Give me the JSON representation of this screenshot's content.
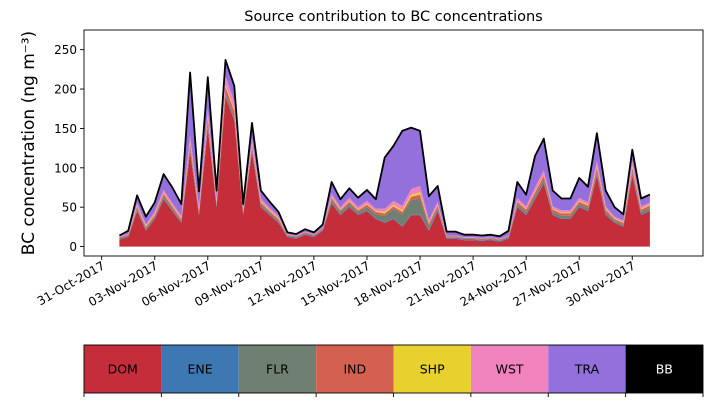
{
  "chart_data": {
    "type": "area",
    "title": "Source contribution to BC concentrations",
    "ylabel": "BC concentration (ng m⁻³)",
    "xlabel": "",
    "stacked": true,
    "ylim": [
      -12,
      275
    ],
    "xlim": [
      "2017-10-30",
      "2017-12-04"
    ],
    "yticks": [
      0,
      50,
      100,
      150,
      200,
      250
    ],
    "xticks": [
      "31-Oct-2017",
      "03-Nov-2017",
      "06-Nov-2017",
      "09-Nov-2017",
      "12-Nov-2017",
      "15-Nov-2017",
      "18-Nov-2017",
      "21-Nov-2017",
      "24-Nov-2017",
      "27-Nov-2017",
      "30-Nov-2017"
    ],
    "grid": false,
    "total_line_color": "#000000",
    "x": [
      "2017-11-01",
      "2017-11-01 12:00",
      "2017-11-02",
      "2017-11-02 12:00",
      "2017-11-03",
      "2017-11-03 12:00",
      "2017-11-04",
      "2017-11-04 12:00",
      "2017-11-05",
      "2017-11-05 12:00",
      "2017-11-06",
      "2017-11-06 12:00",
      "2017-11-07",
      "2017-11-07 12:00",
      "2017-11-08",
      "2017-11-08 12:00",
      "2017-11-09",
      "2017-11-09 12:00",
      "2017-11-10",
      "2017-11-10 12:00",
      "2017-11-11",
      "2017-11-11 12:00",
      "2017-11-12",
      "2017-11-12 12:00",
      "2017-11-13",
      "2017-11-13 12:00",
      "2017-11-14",
      "2017-11-14 12:00",
      "2017-11-15",
      "2017-11-15 12:00",
      "2017-11-16",
      "2017-11-16 12:00",
      "2017-11-17",
      "2017-11-17 12:00",
      "2017-11-18",
      "2017-11-18 12:00",
      "2017-11-19",
      "2017-11-19 12:00",
      "2017-11-20",
      "2017-11-20 12:00",
      "2017-11-21",
      "2017-11-21 12:00",
      "2017-11-22",
      "2017-11-22 12:00",
      "2017-11-23",
      "2017-11-23 12:00",
      "2017-11-24",
      "2017-11-24 12:00",
      "2017-11-25",
      "2017-11-25 12:00",
      "2017-11-26",
      "2017-11-26 12:00",
      "2017-11-27",
      "2017-11-27 12:00",
      "2017-11-28",
      "2017-11-28 12:00",
      "2017-11-29",
      "2017-11-29 12:00",
      "2017-11-30",
      "2017-11-30 12:00",
      "2017-12-01"
    ],
    "series": [
      {
        "name": "DOM",
        "color": "#c62d3a",
        "values": [
          9,
          12,
          45,
          20,
          35,
          60,
          45,
          30,
          120,
          40,
          150,
          50,
          190,
          160,
          40,
          120,
          50,
          40,
          30,
          12,
          10,
          15,
          12,
          20,
          55,
          40,
          50,
          40,
          45,
          35,
          30,
          35,
          25,
          40,
          40,
          20,
          45,
          10,
          10,
          8,
          8,
          7,
          8,
          6,
          10,
          50,
          40,
          60,
          80,
          40,
          35,
          35,
          50,
          45,
          90,
          40,
          30,
          25,
          90,
          40,
          45
        ]
      },
      {
        "name": "ENE",
        "color": "#3e78b2",
        "values": [
          1,
          1,
          1,
          1,
          1,
          1,
          1,
          1,
          1,
          1,
          1,
          1,
          1,
          1,
          1,
          1,
          1,
          1,
          1,
          1,
          1,
          1,
          1,
          1,
          1,
          1,
          1,
          1,
          1,
          1,
          1,
          1,
          1,
          1,
          1,
          1,
          1,
          1,
          1,
          1,
          1,
          1,
          1,
          1,
          1,
          1,
          1,
          1,
          1,
          1,
          1,
          1,
          1,
          1,
          1,
          1,
          1,
          1,
          1,
          1,
          1
        ]
      },
      {
        "name": "FLR",
        "color": "#6f7f72",
        "values": [
          1,
          1,
          2,
          2,
          2,
          3,
          2,
          2,
          4,
          2,
          4,
          2,
          4,
          4,
          2,
          3,
          2,
          2,
          2,
          1,
          1,
          1,
          1,
          1,
          3,
          3,
          3,
          3,
          4,
          5,
          8,
          12,
          15,
          18,
          20,
          5,
          3,
          1,
          1,
          1,
          1,
          1,
          1,
          1,
          1,
          3,
          3,
          4,
          4,
          3,
          3,
          3,
          3,
          3,
          4,
          3,
          2,
          2,
          4,
          3,
          3
        ]
      },
      {
        "name": "IND",
        "color": "#d4614f",
        "values": [
          1,
          1,
          3,
          2,
          2,
          3,
          3,
          2,
          6,
          3,
          8,
          3,
          8,
          7,
          2,
          5,
          3,
          2,
          2,
          1,
          1,
          1,
          1,
          1,
          3,
          2,
          3,
          2,
          3,
          3,
          3,
          3,
          3,
          4,
          5,
          3,
          3,
          1,
          1,
          1,
          1,
          1,
          1,
          1,
          1,
          3,
          3,
          4,
          5,
          3,
          3,
          3,
          3,
          3,
          5,
          3,
          2,
          2,
          5,
          3,
          3
        ]
      },
      {
        "name": "SHP",
        "color": "#e8d12e",
        "values": [
          0,
          0,
          1,
          1,
          1,
          1,
          1,
          1,
          2,
          1,
          2,
          1,
          2,
          2,
          1,
          1,
          1,
          1,
          1,
          0,
          0,
          0,
          0,
          0,
          1,
          1,
          1,
          1,
          1,
          1,
          2,
          2,
          2,
          3,
          3,
          1,
          1,
          0,
          0,
          0,
          0,
          0,
          0,
          0,
          0,
          1,
          1,
          1,
          1,
          1,
          1,
          1,
          1,
          1,
          2,
          1,
          1,
          1,
          2,
          1,
          1
        ]
      },
      {
        "name": "WST",
        "color": "#f183be",
        "values": [
          1,
          1,
          3,
          2,
          3,
          4,
          3,
          3,
          8,
          3,
          10,
          4,
          12,
          10,
          3,
          7,
          4,
          3,
          3,
          1,
          1,
          1,
          1,
          1,
          4,
          3,
          4,
          3,
          4,
          3,
          4,
          5,
          6,
          7,
          8,
          4,
          4,
          1,
          1,
          1,
          1,
          1,
          1,
          1,
          1,
          4,
          3,
          5,
          6,
          3,
          3,
          3,
          4,
          3,
          7,
          3,
          2,
          2,
          7,
          3,
          3
        ]
      },
      {
        "name": "TRA",
        "color": "#9370db",
        "values": [
          1,
          4,
          10,
          10,
          12,
          20,
          20,
          15,
          80,
          20,
          40,
          10,
          20,
          20,
          5,
          20,
          10,
          8,
          5,
          2,
          2,
          3,
          2,
          4,
          15,
          10,
          12,
          12,
          14,
          12,
          65,
          70,
          95,
          78,
          70,
          30,
          20,
          5,
          5,
          3,
          3,
          3,
          3,
          3,
          6,
          20,
          15,
          40,
          40,
          20,
          15,
          15,
          25,
          20,
          35,
          20,
          12,
          8,
          14,
          10,
          10
        ]
      },
      {
        "name": "BB",
        "color": "#000000",
        "values": [
          0,
          0,
          0,
          0,
          0,
          0,
          0,
          0,
          0,
          0,
          0,
          0,
          0,
          0,
          0,
          0,
          0,
          0,
          0,
          0,
          0,
          0,
          0,
          0,
          0,
          0,
          0,
          0,
          0,
          0,
          0,
          0,
          0,
          0,
          0,
          0,
          0,
          0,
          0,
          0,
          0,
          0,
          0,
          0,
          0,
          0,
          0,
          0,
          0,
          0,
          0,
          0,
          0,
          0,
          0,
          0,
          0,
          0,
          0,
          0,
          0
        ]
      }
    ]
  }
}
